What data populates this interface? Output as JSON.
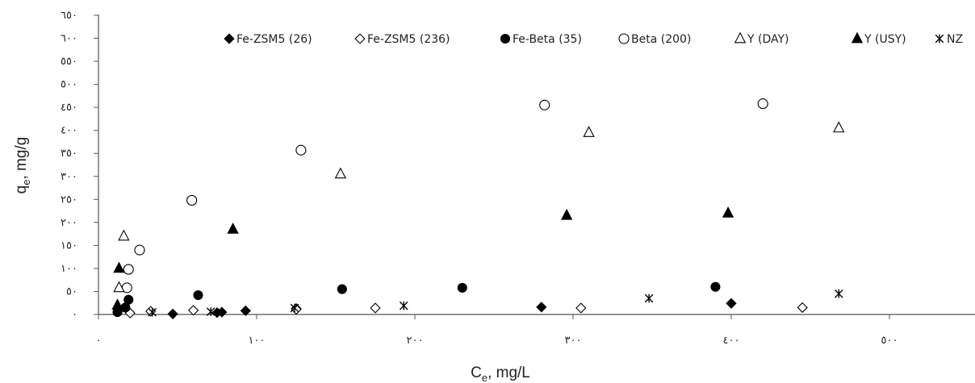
{
  "chart_data": {
    "type": "scatter",
    "xlabel": "C",
    "xlabel_sub": "e",
    "xlabel_unit": ", mg/L",
    "ylabel": "q",
    "ylabel_sub": "e",
    "ylabel_unit": ", mg/g",
    "xlim": [
      0,
      550
    ],
    "ylim": [
      0,
      650
    ],
    "x_ticks": [
      0,
      100,
      200,
      300,
      400,
      500
    ],
    "x_tick_labels": [
      "٠",
      "١٠٠",
      "٢٠٠",
      "٣٠٠",
      "٤٠٠",
      "٥٠٠"
    ],
    "y_ticks": [
      0,
      50,
      100,
      150,
      200,
      250,
      300,
      350,
      400,
      450,
      500,
      550,
      600,
      650
    ],
    "y_tick_labels": [
      "٠",
      "٥٠",
      "١٠٠",
      "١٥٠",
      "٢٠٠",
      "٢٥٠",
      "٣٠٠",
      "٣٥٠",
      "٤٠٠",
      "٤٥٠",
      "٥٠٠",
      "٥٥٠",
      "٦٠٠",
      "٦٥٠"
    ],
    "grid": false,
    "legend_position": "top",
    "series": [
      {
        "name": "Fe-ZSM5 (26)",
        "marker": "diamond-filled",
        "points": [
          [
            47,
            1
          ],
          [
            75,
            4
          ],
          [
            78,
            5
          ],
          [
            93,
            8
          ],
          [
            125,
            13
          ],
          [
            280,
            16
          ],
          [
            400,
            24
          ]
        ]
      },
      {
        "name": "Fe-ZSM5 (236)",
        "marker": "diamond-open",
        "points": [
          [
            20,
            3
          ],
          [
            33,
            7
          ],
          [
            60,
            9
          ],
          [
            125,
            11
          ],
          [
            175,
            14
          ],
          [
            305,
            14
          ],
          [
            445,
            15
          ]
        ]
      },
      {
        "name": "Fe-Beta (35)",
        "marker": "circle-filled",
        "points": [
          [
            12,
            5
          ],
          [
            17,
            15
          ],
          [
            19,
            32
          ],
          [
            63,
            42
          ],
          [
            154,
            55
          ],
          [
            230,
            58
          ],
          [
            390,
            60
          ]
        ]
      },
      {
        "name": "Beta (200)",
        "marker": "circle-open",
        "points": [
          [
            18,
            58
          ],
          [
            19,
            98
          ],
          [
            26,
            140
          ],
          [
            59,
            248
          ],
          [
            128,
            357
          ],
          [
            282,
            455
          ],
          [
            420,
            458
          ]
        ]
      },
      {
        "name": "Y (DAY)",
        "marker": "triangle-open",
        "points": [
          [
            13,
            58
          ],
          [
            16,
            170
          ],
          [
            153,
            305
          ],
          [
            310,
            395
          ],
          [
            468,
            405
          ]
        ]
      },
      {
        "name": "Y (USY)",
        "marker": "triangle-filled",
        "points": [
          [
            12,
            20
          ],
          [
            13,
            100
          ],
          [
            85,
            185
          ],
          [
            296,
            215
          ],
          [
            398,
            220
          ]
        ]
      },
      {
        "name": "NZ",
        "marker": "star",
        "points": [
          [
            34,
            5
          ],
          [
            71,
            6
          ],
          [
            124,
            14
          ],
          [
            193,
            19
          ],
          [
            348,
            35
          ],
          [
            468,
            45
          ]
        ]
      }
    ]
  }
}
